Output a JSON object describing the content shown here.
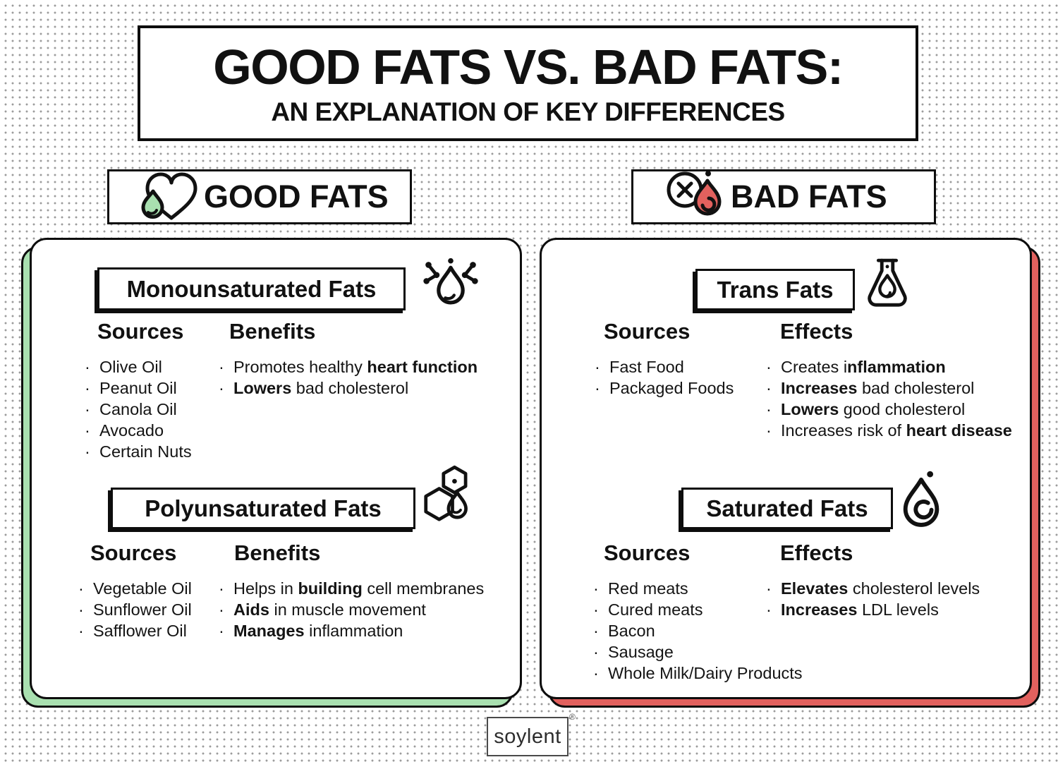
{
  "colors": {
    "good": "#a9e0b0",
    "bad": "#e2615e",
    "ink": "#111111",
    "dot": "#9c9c9c"
  },
  "header": {
    "title": "GOOD FATS VS. BAD FATS:",
    "subtitle": "AN EXPLANATION OF KEY DIFFERENCES"
  },
  "badges": {
    "good": {
      "label": "GOOD FATS"
    },
    "bad": {
      "label": "BAD FATS"
    }
  },
  "icons": {
    "good_badge": "heart-droplet-icon",
    "bad_badge": "crossed-circle-droplet-icon",
    "monounsaturated": "molecule-droplet-icon",
    "polyunsaturated": "hexagons-droplet-icon",
    "trans": "flask-droplet-icon",
    "saturated": "droplet-swirl-icon"
  },
  "good_panel": {
    "sections": [
      {
        "title": "Monounsaturated Fats",
        "sources_heading": "Sources",
        "points_heading": "Benefits",
        "sources": [
          "Olive Oil",
          "Peanut Oil",
          "Canola Oil",
          "Avocado",
          "Certain Nuts"
        ],
        "points": [
          "Promotes healthy **heart function**",
          "**Lowers** bad cholesterol"
        ]
      },
      {
        "title": "Polyunsaturated Fats",
        "sources_heading": "Sources",
        "points_heading": "Benefits",
        "sources": [
          "Vegetable Oil",
          "Sunflower Oil",
          "Safflower Oil"
        ],
        "points": [
          "Helps in **building** cell membranes",
          "**Aids** in muscle movement",
          "**Manages** inflammation"
        ]
      }
    ]
  },
  "bad_panel": {
    "sections": [
      {
        "title": "Trans Fats",
        "sources_heading": "Sources",
        "points_heading": "Effects",
        "sources": [
          "Fast Food",
          "Packaged Foods"
        ],
        "points": [
          "Creates i**nflammation**",
          "**Increases** bad cholesterol",
          "**Lowers** good cholesterol",
          "Increases risk of **heart disease**"
        ]
      },
      {
        "title": "Saturated Fats",
        "sources_heading": "Sources",
        "points_heading": "Effects",
        "sources": [
          "Red meats",
          "Cured meats",
          "Bacon",
          "Sausage",
          "Whole Milk/Dairy Products"
        ],
        "points": [
          "**Elevates** cholesterol levels",
          "**Increases** LDL levels"
        ]
      }
    ]
  },
  "footer": {
    "brand": "soylent",
    "registered_mark": "®"
  },
  "misc": {
    "bullet": "·"
  }
}
